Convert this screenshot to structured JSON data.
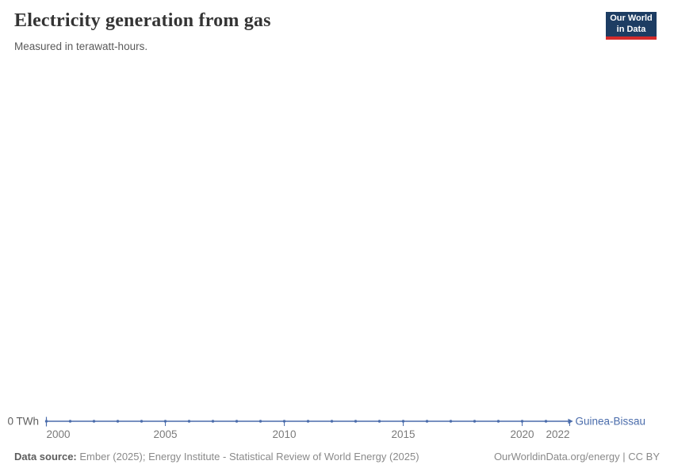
{
  "header": {
    "title": "Electricity generation from gas",
    "subtitle": "Measured in terawatt-hours."
  },
  "logo": {
    "line1": "Our World",
    "line2": "in Data",
    "bg_color": "#1d3d63",
    "accent_color": "#d42b2b"
  },
  "chart_data": {
    "type": "line",
    "title": "Electricity generation from gas",
    "subtitle": "Measured in terawatt-hours.",
    "xlabel": "",
    "ylabel": "terawatt-hours",
    "xlim": [
      2000,
      2022
    ],
    "grid": false,
    "legend_position": "end-of-line",
    "y_tick_label": "0 TWh",
    "x_ticks": [
      2000,
      2005,
      2010,
      2015,
      2020,
      2022
    ],
    "series": [
      {
        "name": "Guinea-Bissau",
        "color": "#4a6cab",
        "x": [
          2000,
          2001,
          2002,
          2003,
          2004,
          2005,
          2006,
          2007,
          2008,
          2009,
          2010,
          2011,
          2012,
          2013,
          2014,
          2015,
          2016,
          2017,
          2018,
          2019,
          2020,
          2021,
          2022
        ],
        "values": [
          0,
          0,
          0,
          0,
          0,
          0,
          0,
          0,
          0,
          0,
          0,
          0,
          0,
          0,
          0,
          0,
          0,
          0,
          0,
          0,
          0,
          0,
          0
        ]
      }
    ]
  },
  "footer": {
    "source_label": "Data source:",
    "source_text": " Ember (2025); Energy Institute - Statistical Review of World Energy (2025)",
    "attribution": "OurWorldinData.org/energy | CC BY"
  }
}
